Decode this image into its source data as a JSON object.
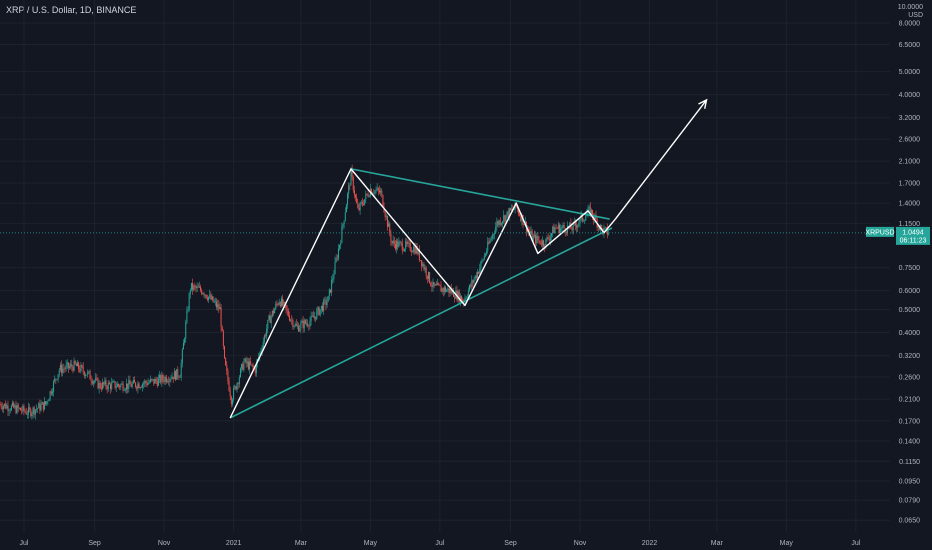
{
  "header": {
    "title": "XRP / U.S. Dollar, 1D, BINANCE",
    "unit_top": "10.0000",
    "unit": "USD"
  },
  "colors": {
    "background": "#131722",
    "grid": "#1e222d",
    "up": "#26a69a",
    "down": "#ef5350",
    "trendline": "#26a69a",
    "pattern": "#ffffff",
    "badge": "#26a69a"
  },
  "chart_data": {
    "type": "candlestick",
    "title": "XRP / U.S. Dollar, 1D, BINANCE",
    "y_scale": "log",
    "ylim": [
      0.058,
      10.0
    ],
    "y_ticks": [
      {
        "value": 8.0,
        "label": "8.0000"
      },
      {
        "value": 6.5,
        "label": "6.5000"
      },
      {
        "value": 5.0,
        "label": "5.0000"
      },
      {
        "value": 4.0,
        "label": "4.0000"
      },
      {
        "value": 3.2,
        "label": "3.2000"
      },
      {
        "value": 2.6,
        "label": "2.6000"
      },
      {
        "value": 2.1,
        "label": "2.1000"
      },
      {
        "value": 1.7,
        "label": "1.7000"
      },
      {
        "value": 1.4,
        "label": "1.4000"
      },
      {
        "value": 1.15,
        "label": "1.1500"
      },
      {
        "value": 0.75,
        "label": "0.7500"
      },
      {
        "value": 0.6,
        "label": "0.6000"
      },
      {
        "value": 0.5,
        "label": "0.5000"
      },
      {
        "value": 0.4,
        "label": "0.4000"
      },
      {
        "value": 0.32,
        "label": "0.3200"
      },
      {
        "value": 0.26,
        "label": "0.2600"
      },
      {
        "value": 0.21,
        "label": "0.2100"
      },
      {
        "value": 0.17,
        "label": "0.1700"
      },
      {
        "value": 0.14,
        "label": "0.1400"
      },
      {
        "value": 0.115,
        "label": "0.1150"
      },
      {
        "value": 0.095,
        "label": "0.0950"
      },
      {
        "value": 0.079,
        "label": "0.0790"
      },
      {
        "value": 0.065,
        "label": "0.0650"
      }
    ],
    "x_range": [
      "2020-06-10",
      "2022-07-31"
    ],
    "x_ticks": [
      {
        "date": "2020-07-01",
        "label": "Jul"
      },
      {
        "date": "2020-09-01",
        "label": "Sep"
      },
      {
        "date": "2020-11-01",
        "label": "Nov"
      },
      {
        "date": "2021-01-01",
        "label": "2021"
      },
      {
        "date": "2021-03-01",
        "label": "Mar"
      },
      {
        "date": "2021-05-01",
        "label": "May"
      },
      {
        "date": "2021-07-01",
        "label": "Jul"
      },
      {
        "date": "2021-09-01",
        "label": "Sep"
      },
      {
        "date": "2021-11-01",
        "label": "Nov"
      },
      {
        "date": "2022-01-01",
        "label": "2022"
      },
      {
        "date": "2022-03-01",
        "label": "Mar"
      },
      {
        "date": "2022-05-01",
        "label": "May"
      },
      {
        "date": "2022-07-01",
        "label": "Jul"
      }
    ],
    "price_path": [
      [
        "2020-06-10",
        0.2
      ],
      [
        "2020-07-05",
        0.185
      ],
      [
        "2020-07-20",
        0.2
      ],
      [
        "2020-08-01",
        0.28
      ],
      [
        "2020-08-15",
        0.29
      ],
      [
        "2020-08-25",
        0.27
      ],
      [
        "2020-09-05",
        0.24
      ],
      [
        "2020-10-01",
        0.24
      ],
      [
        "2020-10-25",
        0.25
      ],
      [
        "2020-11-15",
        0.27
      ],
      [
        "2020-11-24",
        0.62
      ],
      [
        "2020-12-05",
        0.6
      ],
      [
        "2020-12-20",
        0.5
      ],
      [
        "2020-12-24",
        0.3
      ],
      [
        "2020-12-30",
        0.21
      ],
      [
        "2021-01-10",
        0.3
      ],
      [
        "2021-01-20",
        0.28
      ],
      [
        "2021-02-01",
        0.45
      ],
      [
        "2021-02-10",
        0.55
      ],
      [
        "2021-02-25",
        0.42
      ],
      [
        "2021-03-10",
        0.45
      ],
      [
        "2021-03-25",
        0.55
      ],
      [
        "2021-04-05",
        1.0
      ],
      [
        "2021-04-14",
        1.85
      ],
      [
        "2021-04-20",
        1.3
      ],
      [
        "2021-05-01",
        1.6
      ],
      [
        "2021-05-10",
        1.55
      ],
      [
        "2021-05-20",
        0.95
      ],
      [
        "2021-06-10",
        0.9
      ],
      [
        "2021-06-25",
        0.62
      ],
      [
        "2021-07-10",
        0.6
      ],
      [
        "2021-07-22",
        0.55
      ],
      [
        "2021-08-05",
        0.75
      ],
      [
        "2021-08-20",
        1.15
      ],
      [
        "2021-09-06",
        1.35
      ],
      [
        "2021-09-20",
        1.0
      ],
      [
        "2021-10-01",
        0.95
      ],
      [
        "2021-10-10",
        1.1
      ],
      [
        "2021-10-25",
        1.1
      ],
      [
        "2021-11-10",
        1.3
      ],
      [
        "2021-11-20",
        1.08
      ],
      [
        "2021-11-26",
        1.05
      ]
    ],
    "annotations": {
      "upper_trendline": [
        [
          "2021-04-14",
          1.95
        ],
        [
          "2021-11-27",
          1.2
        ]
      ],
      "lower_trendline": [
        [
          "2020-12-29",
          0.175
        ],
        [
          "2021-11-29",
          1.1
        ]
      ],
      "zigzag": [
        [
          "2020-12-29",
          0.175
        ],
        [
          "2021-04-14",
          1.95
        ],
        [
          "2021-07-23",
          0.52
        ],
        [
          "2021-09-06",
          1.4
        ],
        [
          "2021-09-25",
          0.86
        ],
        [
          "2021-11-08",
          1.3
        ],
        [
          "2021-11-22",
          1.05
        ],
        [
          "2021-12-02",
          1.2
        ]
      ],
      "arrow": [
        [
          "2021-12-02",
          1.2
        ],
        [
          "2022-02-20",
          3.8
        ]
      ]
    },
    "last_price": {
      "symbol": "XRPUSD",
      "value": 1.0494,
      "label": "1.0494",
      "countdown": "06:11:23"
    }
  }
}
